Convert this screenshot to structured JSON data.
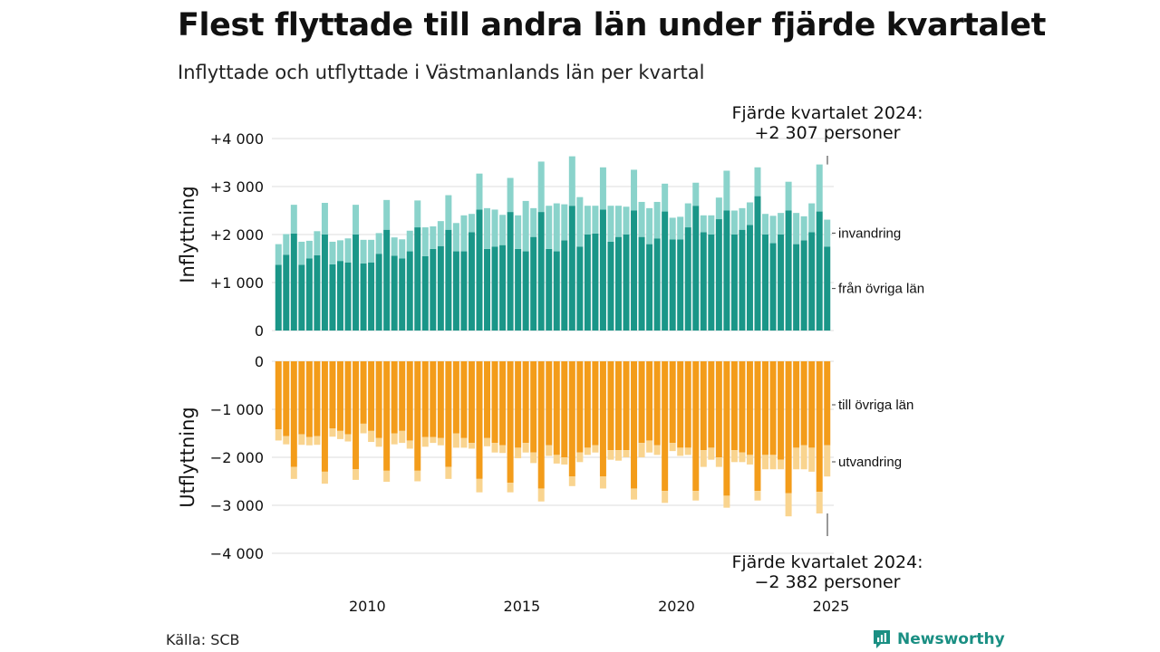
{
  "title": "Flest flyttade till andra län under fjärde kvartalet",
  "subtitle": "Inflyttade och utflyttade i Västmanlands län per kvartal",
  "source": "Källa: SCB",
  "brand": {
    "name": "Newsworthy",
    "icon": "newsworthy-logo-icon",
    "color": "#1a8f83"
  },
  "colors": {
    "in_domestic": "#1a9688",
    "in_immigration": "#8ad3cb",
    "out_domestic": "#f39c1a",
    "out_emigration": "#f9d48f",
    "grid": "#dddddd",
    "axis_text": "#111111"
  },
  "chart_data": {
    "type": "bar",
    "stacked": true,
    "x_start": "2007 Q1",
    "x_ticks": [
      "2010",
      "2015",
      "2020",
      "2025"
    ],
    "panels": [
      {
        "ylabel": "Inflyttning",
        "ylim": [
          0,
          4000
        ],
        "yticks": [
          0,
          1000,
          2000,
          3000,
          4000
        ],
        "ytick_labels": [
          "0",
          "+1 000",
          "+2 000",
          "+3 000",
          "+4 000"
        ],
        "series": [
          {
            "name": "från övriga län",
            "values": [
              1370,
              1580,
              2020,
              1370,
              1500,
              1570,
              2000,
              1380,
              1450,
              1420,
              2000,
              1400,
              1420,
              1600,
              2100,
              1560,
              1500,
              1650,
              2150,
              1550,
              1700,
              1760,
              2100,
              1650,
              1650,
              2050,
              2520,
              1700,
              1750,
              1780,
              2470,
              1700,
              1650,
              1950,
              2470,
              1700,
              1650,
              1880,
              2600,
              1750,
              2000,
              2020,
              2520,
              1850,
              1950,
              2000,
              2500,
              1950,
              1800,
              1920,
              2480,
              1900,
              1900,
              2150,
              2600,
              2050,
              2000,
              2320,
              2500,
              2000,
              2100,
              2200,
              2800,
              2000,
              1820,
              2000,
              2500,
              1800,
              1880,
              2050,
              2480,
              1750
            ]
          },
          {
            "name": "invandring",
            "values": [
              430,
              430,
              600,
              480,
              370,
              500,
              660,
              470,
              430,
              500,
              620,
              490,
              470,
              430,
              620,
              380,
              400,
              430,
              560,
              600,
              470,
              520,
              720,
              590,
              750,
              380,
              750,
              850,
              770,
              630,
              710,
              700,
              1050,
              600,
              1050,
              900,
              1000,
              750,
              1030,
              1030,
              600,
              580,
              880,
              750,
              650,
              580,
              850,
              730,
              750,
              760,
              580,
              450,
              470,
              500,
              480,
              350,
              400,
              450,
              830,
              500,
              450,
              470,
              600,
              430,
              570,
              450,
              600,
              650,
              500,
              600,
              980,
              560
            ]
          }
        ],
        "annotation": {
          "lines": [
            "Fjärde kvartalet 2024:",
            "+2 307 personer"
          ]
        }
      },
      {
        "ylabel": "Utflyttning",
        "ylim": [
          -4000,
          0
        ],
        "yticks": [
          0,
          -1000,
          -2000,
          -3000,
          -4000
        ],
        "ytick_labels": [
          "0",
          "−1 000",
          "−2 000",
          "−3 000",
          "−4 000"
        ],
        "series": [
          {
            "name": "till övriga län",
            "values": [
              -1420,
              -1560,
              -2200,
              -1520,
              -1580,
              -1560,
              -2300,
              -1400,
              -1450,
              -1520,
              -2250,
              -1300,
              -1450,
              -1600,
              -2280,
              -1500,
              -1450,
              -1650,
              -2280,
              -1580,
              -1580,
              -1600,
              -2200,
              -1500,
              -1600,
              -1700,
              -2450,
              -1600,
              -1700,
              -1750,
              -2530,
              -1800,
              -1700,
              -1900,
              -2650,
              -1750,
              -1950,
              -2000,
              -2400,
              -1900,
              -1800,
              -1750,
              -2400,
              -1850,
              -1850,
              -1850,
              -2650,
              -1700,
              -1650,
              -1750,
              -2700,
              -1700,
              -1800,
              -1800,
              -2700,
              -1850,
              -1800,
              -2000,
              -2800,
              -1850,
              -1900,
              -1950,
              -2700,
              -1950,
              -1950,
              -2050,
              -2750,
              -1800,
              -1750,
              -1800,
              -2720,
              -1750
            ]
          },
          {
            "name": "utvandring",
            "values": [
              -230,
              -170,
              -250,
              -220,
              -170,
              -180,
              -250,
              -170,
              -170,
              -150,
              -220,
              -200,
              -230,
              -180,
              -230,
              -230,
              -250,
              -170,
              -220,
              -200,
              -120,
              -150,
              -250,
              -300,
              -200,
              -120,
              -280,
              -170,
              -200,
              -160,
              -200,
              -220,
              -200,
              -220,
              -270,
              -220,
              -180,
              -150,
              -200,
              -200,
              -150,
              -150,
              -250,
              -200,
              -220,
              -150,
              -230,
              -300,
              -250,
              -200,
              -250,
              -170,
              -170,
              -150,
              -200,
              -350,
              -250,
              -200,
              -250,
              -250,
              -200,
              -200,
              -200,
              -300,
              -300,
              -200,
              -480,
              -450,
              -500,
              -500,
              -450,
              -650
            ]
          }
        ],
        "annotation": {
          "lines": [
            "Fjärde kvartalet 2024:",
            "−2 382 personer"
          ]
        }
      }
    ]
  }
}
